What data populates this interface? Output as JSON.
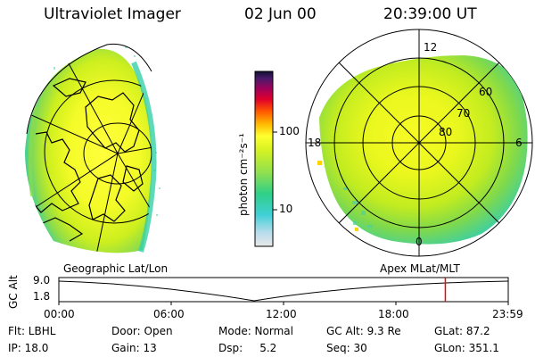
{
  "header": {
    "title": "Ultraviolet Imager",
    "date": "02 Jun 00",
    "time": "20:39:00 UT"
  },
  "colorbar": {
    "unit_label": "photon cm⁻²s⁻¹",
    "tick_100": "100",
    "tick_10": "10"
  },
  "polar": {
    "mlt_12": "12",
    "mlt_18": "18",
    "mlt_6": "6",
    "mlt_0": "0",
    "lat_60": "60",
    "lat_70": "70",
    "lat_80": "80"
  },
  "panel_labels": {
    "left": "Geographic Lat/Lon",
    "right": "Apex MLat/MLT"
  },
  "altitude_strip": {
    "axis_label": "GC Alt",
    "y_max": "9.0",
    "y_min": "1.8",
    "time_ticks": [
      "00:00",
      "06:00",
      "12:00",
      "18:00",
      "23:59"
    ],
    "current_time_fraction": 0.86,
    "marker_color": "#ff0000"
  },
  "info": {
    "row1": [
      "Flt: LBHL",
      "Door: Open",
      "Mode: Normal",
      "GC Alt: 9.3 Re",
      "GLat: 87.2"
    ],
    "row2": [
      "IP: 18.0",
      "Gain: 13",
      "Dsp:     5.2",
      "Seq: 30",
      "GLon: 351.1"
    ]
  }
}
